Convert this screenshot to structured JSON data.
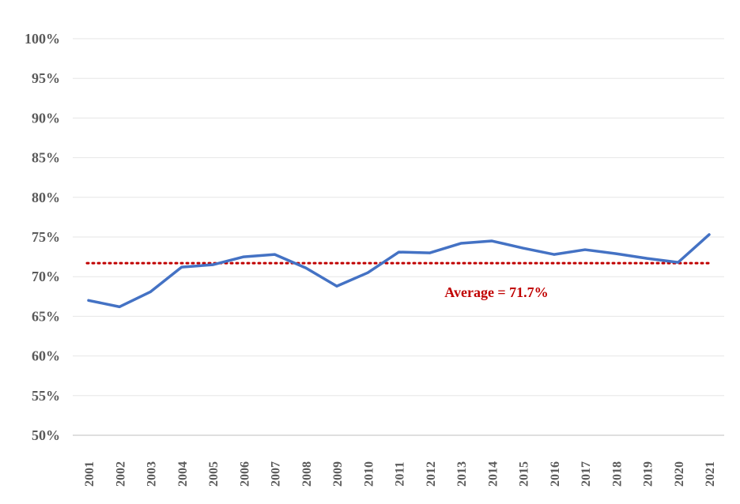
{
  "chart_data": {
    "type": "line",
    "title": "",
    "xlabel": "",
    "ylabel": "",
    "categories": [
      "2001",
      "2002",
      "2003",
      "2004",
      "2005",
      "2006",
      "2007",
      "2008",
      "2009",
      "2010",
      "2011",
      "2012",
      "2013",
      "2014",
      "2015",
      "2016",
      "2017",
      "2018",
      "2019",
      "2020",
      "2021"
    ],
    "series": [
      {
        "values": [
          67.0,
          66.2,
          68.1,
          71.2,
          71.5,
          72.5,
          72.8,
          71.1,
          68.8,
          70.5,
          73.1,
          73.0,
          74.2,
          74.5,
          73.6,
          72.8,
          73.4,
          72.9,
          72.3,
          71.8,
          75.3
        ],
        "color": "#4472C4"
      }
    ],
    "average": {
      "value": 71.7,
      "label": "Average = 71.7%",
      "color": "#C00000",
      "style": "dotted"
    },
    "ylim": [
      50,
      100
    ],
    "y_ticks": [
      "50%",
      "55%",
      "60%",
      "65%",
      "70%",
      "75%",
      "80%",
      "85%",
      "90%",
      "95%",
      "100%"
    ],
    "y_tick_values": [
      50,
      55,
      60,
      65,
      70,
      75,
      80,
      85,
      90,
      95,
      100
    ],
    "grid": true,
    "legend": "none"
  }
}
